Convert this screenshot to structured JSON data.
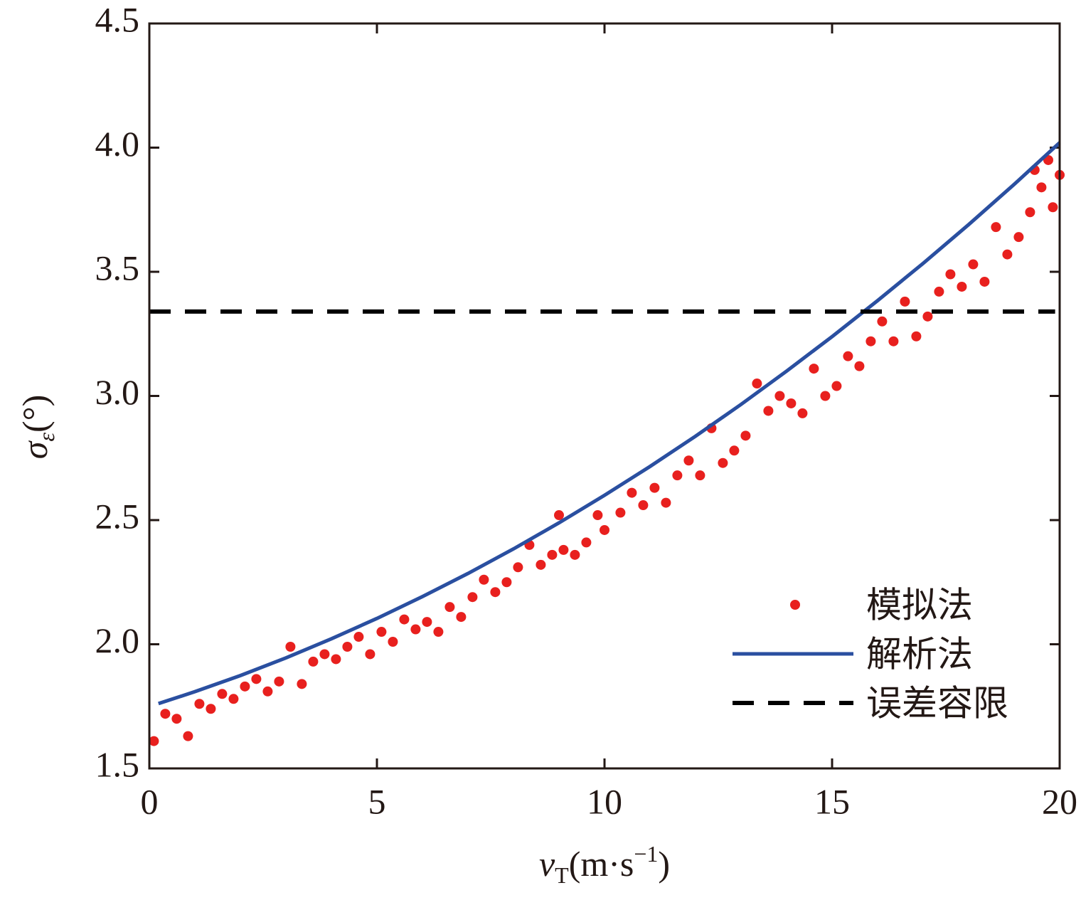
{
  "chart_data": {
    "type": "scatter",
    "xlabel": {
      "main": "v",
      "sub": "T",
      "rest": "(m·s",
      "sup": "−1",
      "end": ")"
    },
    "ylabel": {
      "main": "σ",
      "sub": "ε",
      "rest": "(°)"
    },
    "xlim": [
      0,
      20
    ],
    "ylim": [
      1.5,
      4.5
    ],
    "xticks": [
      0,
      5,
      10,
      15,
      20
    ],
    "yticks": [
      1.5,
      {
        "value": 2,
        "label": "2.0"
      },
      2.5,
      {
        "value": 3,
        "label": "3.0"
      },
      3.5,
      {
        "value": 4,
        "label": "4.0"
      },
      4.5
    ],
    "legend": "lower right",
    "series": [
      {
        "name": "模拟法",
        "kind": "scatter",
        "color": "#e8201e",
        "x": [
          0.1,
          0.35,
          0.6,
          0.85,
          1.1,
          1.35,
          1.6,
          1.85,
          2.1,
          2.35,
          2.6,
          2.85,
          3.1,
          3.35,
          3.6,
          3.85,
          4.1,
          4.35,
          4.6,
          4.85,
          5.1,
          5.35,
          5.6,
          5.85,
          6.1,
          6.35,
          6.6,
          6.85,
          7.1,
          7.35,
          7.6,
          7.85,
          8.1,
          8.35,
          8.6,
          8.85,
          9.0,
          9.1,
          9.35,
          9.6,
          9.85,
          10.0,
          10.35,
          10.6,
          10.85,
          11.1,
          11.35,
          11.6,
          11.85,
          12.1,
          12.35,
          12.6,
          12.85,
          13.1,
          13.35,
          13.6,
          13.85,
          14.1,
          14.35,
          14.6,
          14.85,
          15.1,
          15.35,
          15.6,
          15.85,
          16.1,
          16.35,
          16.6,
          16.85,
          17.1,
          17.35,
          17.6,
          17.85,
          18.1,
          18.35,
          18.6,
          18.85,
          19.1,
          19.35,
          19.45,
          19.6,
          19.75,
          19.85,
          20.0
        ],
        "values": [
          1.61,
          1.72,
          1.7,
          1.63,
          1.76,
          1.74,
          1.8,
          1.78,
          1.83,
          1.86,
          1.81,
          1.85,
          1.99,
          1.84,
          1.93,
          1.96,
          1.94,
          1.99,
          2.03,
          1.96,
          2.05,
          2.01,
          2.1,
          2.06,
          2.09,
          2.05,
          2.15,
          2.11,
          2.19,
          2.26,
          2.21,
          2.25,
          2.31,
          2.4,
          2.32,
          2.36,
          2.52,
          2.38,
          2.36,
          2.41,
          2.52,
          2.46,
          2.53,
          2.61,
          2.56,
          2.63,
          2.57,
          2.68,
          2.74,
          2.68,
          2.87,
          2.73,
          2.78,
          2.84,
          3.05,
          2.94,
          3.0,
          2.97,
          2.93,
          3.11,
          3.0,
          3.04,
          3.16,
          3.12,
          3.22,
          3.3,
          3.22,
          3.38,
          3.24,
          3.32,
          3.42,
          3.49,
          3.44,
          3.53,
          3.46,
          3.68,
          3.57,
          3.64,
          3.74,
          3.91,
          3.84,
          3.95,
          3.76,
          3.89
        ]
      },
      {
        "name": "解析法",
        "kind": "line",
        "color": "#2a4fa0",
        "x": [
          0.2,
          1,
          2,
          3,
          4,
          5,
          6,
          7,
          8,
          9,
          10,
          11,
          12,
          13,
          14,
          15,
          16,
          17,
          18,
          19,
          20
        ],
        "values": [
          1.761,
          1.809,
          1.874,
          1.945,
          2.022,
          2.104,
          2.192,
          2.285,
          2.384,
          2.489,
          2.6,
          2.716,
          2.838,
          2.966,
          3.1,
          3.239,
          3.384,
          3.534,
          3.69,
          3.852,
          4.02
        ]
      },
      {
        "name": "误差容限",
        "kind": "dashed",
        "color": "#000000",
        "x": [
          0,
          19.9
        ],
        "values": [
          3.34,
          3.34
        ]
      }
    ]
  }
}
